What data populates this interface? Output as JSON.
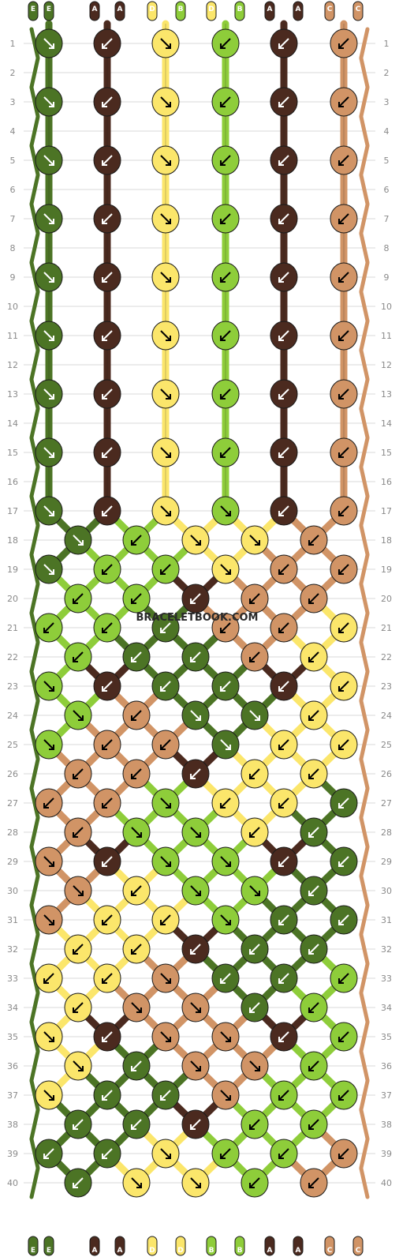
{
  "watermark": "BRACELETBOOK.COM",
  "colors": {
    "E": "#4c7425",
    "A": "#4b2a1f",
    "D": "#fbe66b",
    "B": "#8ecd3a",
    "C": "#d19466"
  },
  "dark_colors": [
    "A",
    "E"
  ],
  "top_strings": [
    "E",
    "E",
    "A",
    "A",
    "D",
    "B",
    "D",
    "B",
    "A",
    "A",
    "C",
    "C"
  ],
  "bottom_strings": [
    "E",
    "E",
    "A",
    "A",
    "D",
    "D",
    "B",
    "B",
    "A",
    "A",
    "C",
    "C"
  ],
  "row_count": 40,
  "row_labels": [
    "1",
    "2",
    "3",
    "4",
    "5",
    "6",
    "7",
    "8",
    "9",
    "10",
    "11",
    "12",
    "13",
    "14",
    "15",
    "16",
    "17",
    "18",
    "19",
    "20",
    "21",
    "22",
    "23",
    "24",
    "25",
    "26",
    "27",
    "28",
    "29",
    "30",
    "31",
    "32",
    "33",
    "34",
    "35",
    "36",
    "37",
    "38",
    "39",
    "40"
  ],
  "knot_rows": [
    {
      "row": 1,
      "knots": [
        [
          "E",
          "dr"
        ],
        [
          "A",
          "dl"
        ],
        [
          "D",
          "dr"
        ],
        [
          "B",
          "dl"
        ],
        [
          "A",
          "dl"
        ],
        [
          "C",
          "dl"
        ]
      ]
    },
    {
      "row": 3,
      "knots": [
        [
          "E",
          "dr"
        ],
        [
          "A",
          "dl"
        ],
        [
          "D",
          "dr"
        ],
        [
          "B",
          "dl"
        ],
        [
          "A",
          "dl"
        ],
        [
          "C",
          "dl"
        ]
      ]
    },
    {
      "row": 5,
      "knots": [
        [
          "E",
          "dr"
        ],
        [
          "A",
          "dl"
        ],
        [
          "D",
          "dr"
        ],
        [
          "B",
          "dl"
        ],
        [
          "A",
          "dl"
        ],
        [
          "C",
          "dl"
        ]
      ]
    },
    {
      "row": 7,
      "knots": [
        [
          "E",
          "dr"
        ],
        [
          "A",
          "dl"
        ],
        [
          "D",
          "dr"
        ],
        [
          "B",
          "dl"
        ],
        [
          "A",
          "dl"
        ],
        [
          "C",
          "dl"
        ]
      ]
    },
    {
      "row": 9,
      "knots": [
        [
          "E",
          "dr"
        ],
        [
          "A",
          "dl"
        ],
        [
          "D",
          "dr"
        ],
        [
          "B",
          "dl"
        ],
        [
          "A",
          "dl"
        ],
        [
          "C",
          "dl"
        ]
      ]
    },
    {
      "row": 11,
      "knots": [
        [
          "E",
          "dr"
        ],
        [
          "A",
          "dl"
        ],
        [
          "D",
          "dr"
        ],
        [
          "B",
          "dl"
        ],
        [
          "A",
          "dl"
        ],
        [
          "C",
          "dl"
        ]
      ]
    },
    {
      "row": 13,
      "knots": [
        [
          "E",
          "dr"
        ],
        [
          "A",
          "dl"
        ],
        [
          "D",
          "dr"
        ],
        [
          "B",
          "dl"
        ],
        [
          "A",
          "dl"
        ],
        [
          "C",
          "dl"
        ]
      ]
    },
    {
      "row": 15,
      "knots": [
        [
          "E",
          "dr"
        ],
        [
          "A",
          "dl"
        ],
        [
          "D",
          "dr"
        ],
        [
          "B",
          "dl"
        ],
        [
          "A",
          "dl"
        ],
        [
          "C",
          "dl"
        ]
      ]
    },
    {
      "row": 17,
      "knots": [
        [
          "E",
          "dr"
        ],
        [
          "A",
          "dl"
        ],
        [
          "D",
          "dr"
        ],
        [
          "B",
          "dr"
        ],
        [
          "A",
          "dl"
        ],
        [
          "C",
          "dl"
        ]
      ]
    },
    {
      "row": 18,
      "knots": [
        [
          "E",
          "dr"
        ],
        [
          "B",
          "dl"
        ],
        [
          "D",
          "dr"
        ],
        [
          "D",
          "dr"
        ],
        [
          "C",
          "dl"
        ]
      ]
    },
    {
      "row": 19,
      "knots": [
        [
          "E",
          "dr"
        ],
        [
          "B",
          "dl"
        ],
        [
          "B",
          "dl"
        ],
        [
          "D",
          "dr"
        ],
        [
          "C",
          "dl"
        ],
        [
          "C",
          "dl"
        ]
      ]
    },
    {
      "row": 20,
      "knots": [
        [
          "B",
          "dl"
        ],
        [
          "B",
          "dl"
        ],
        [
          "A",
          "dl"
        ],
        [
          "C",
          "dl"
        ],
        [
          "C",
          "dl"
        ]
      ]
    },
    {
      "row": 21,
      "knots": [
        [
          "B",
          "dl"
        ],
        [
          "B",
          "dl"
        ],
        [
          "E",
          "dl"
        ],
        [
          "C",
          "dl"
        ],
        [
          "C",
          "dl"
        ],
        [
          "D",
          "dl"
        ]
      ]
    },
    {
      "row": 22,
      "knots": [
        [
          "B",
          "dl"
        ],
        [
          "E",
          "dl"
        ],
        [
          "E",
          "dl"
        ],
        [
          "C",
          "dl"
        ],
        [
          "D",
          "dl"
        ]
      ]
    },
    {
      "row": 23,
      "knots": [
        [
          "B",
          "dr"
        ],
        [
          "A",
          "dl"
        ],
        [
          "E",
          "dl"
        ],
        [
          "E",
          "dl"
        ],
        [
          "A",
          "dl"
        ],
        [
          "D",
          "dl"
        ]
      ]
    },
    {
      "row": 24,
      "knots": [
        [
          "B",
          "dr"
        ],
        [
          "C",
          "dl"
        ],
        [
          "E",
          "dr"
        ],
        [
          "E",
          "dr"
        ],
        [
          "D",
          "dl"
        ]
      ]
    },
    {
      "row": 25,
      "knots": [
        [
          "B",
          "dr"
        ],
        [
          "C",
          "dl"
        ],
        [
          "C",
          "dl"
        ],
        [
          "E",
          "dr"
        ],
        [
          "D",
          "dl"
        ],
        [
          "D",
          "dl"
        ]
      ]
    },
    {
      "row": 26,
      "knots": [
        [
          "C",
          "dl"
        ],
        [
          "C",
          "dl"
        ],
        [
          "A",
          "dl"
        ],
        [
          "D",
          "dl"
        ],
        [
          "D",
          "dl"
        ]
      ]
    },
    {
      "row": 27,
      "knots": [
        [
          "C",
          "dl"
        ],
        [
          "C",
          "dl"
        ],
        [
          "B",
          "dr"
        ],
        [
          "D",
          "dl"
        ],
        [
          "D",
          "dl"
        ],
        [
          "E",
          "dl"
        ]
      ]
    },
    {
      "row": 28,
      "knots": [
        [
          "C",
          "dl"
        ],
        [
          "B",
          "dr"
        ],
        [
          "B",
          "dr"
        ],
        [
          "D",
          "dl"
        ],
        [
          "E",
          "dl"
        ]
      ]
    },
    {
      "row": 29,
      "knots": [
        [
          "C",
          "dr"
        ],
        [
          "A",
          "dl"
        ],
        [
          "B",
          "dr"
        ],
        [
          "B",
          "dr"
        ],
        [
          "A",
          "dl"
        ],
        [
          "E",
          "dl"
        ]
      ]
    },
    {
      "row": 30,
      "knots": [
        [
          "C",
          "dr"
        ],
        [
          "D",
          "dl"
        ],
        [
          "B",
          "dr"
        ],
        [
          "B",
          "dr"
        ],
        [
          "E",
          "dl"
        ]
      ]
    },
    {
      "row": 31,
      "knots": [
        [
          "C",
          "dr"
        ],
        [
          "D",
          "dl"
        ],
        [
          "D",
          "dl"
        ],
        [
          "B",
          "dr"
        ],
        [
          "E",
          "dl"
        ],
        [
          "E",
          "dl"
        ]
      ]
    },
    {
      "row": 32,
      "knots": [
        [
          "D",
          "dl"
        ],
        [
          "D",
          "dl"
        ],
        [
          "A",
          "dl"
        ],
        [
          "E",
          "dl"
        ],
        [
          "E",
          "dl"
        ]
      ]
    },
    {
      "row": 33,
      "knots": [
        [
          "D",
          "dl"
        ],
        [
          "D",
          "dl"
        ],
        [
          "C",
          "dr"
        ],
        [
          "E",
          "dl"
        ],
        [
          "E",
          "dl"
        ],
        [
          "B",
          "dl"
        ]
      ]
    },
    {
      "row": 34,
      "knots": [
        [
          "D",
          "dl"
        ],
        [
          "C",
          "dr"
        ],
        [
          "C",
          "dr"
        ],
        [
          "E",
          "dl"
        ],
        [
          "B",
          "dl"
        ]
      ]
    },
    {
      "row": 35,
      "knots": [
        [
          "D",
          "dr"
        ],
        [
          "A",
          "dl"
        ],
        [
          "C",
          "dr"
        ],
        [
          "C",
          "dr"
        ],
        [
          "A",
          "dl"
        ],
        [
          "B",
          "dl"
        ]
      ]
    },
    {
      "row": 36,
      "knots": [
        [
          "D",
          "dr"
        ],
        [
          "E",
          "dl"
        ],
        [
          "C",
          "dr"
        ],
        [
          "C",
          "dr"
        ],
        [
          "B",
          "dl"
        ]
      ]
    },
    {
      "row": 37,
      "knots": [
        [
          "D",
          "dr"
        ],
        [
          "E",
          "dl"
        ],
        [
          "E",
          "dl"
        ],
        [
          "C",
          "dr"
        ],
        [
          "B",
          "dl"
        ],
        [
          "B",
          "dl"
        ]
      ]
    },
    {
      "row": 38,
      "knots": [
        [
          "E",
          "dl"
        ],
        [
          "E",
          "dl"
        ],
        [
          "A",
          "dl"
        ],
        [
          "B",
          "dl"
        ],
        [
          "B",
          "dl"
        ]
      ]
    },
    {
      "row": 39,
      "knots": [
        [
          "E",
          "dl"
        ],
        [
          "E",
          "dl"
        ],
        [
          "D",
          "dr"
        ],
        [
          "B",
          "dl"
        ],
        [
          "B",
          "dl"
        ],
        [
          "C",
          "dl"
        ]
      ]
    },
    {
      "row": 40,
      "knots": [
        [
          "E",
          "dl"
        ],
        [
          "D",
          "dr"
        ],
        [
          "D",
          "dr"
        ],
        [
          "B",
          "dl"
        ],
        [
          "C",
          "dl"
        ]
      ]
    }
  ]
}
